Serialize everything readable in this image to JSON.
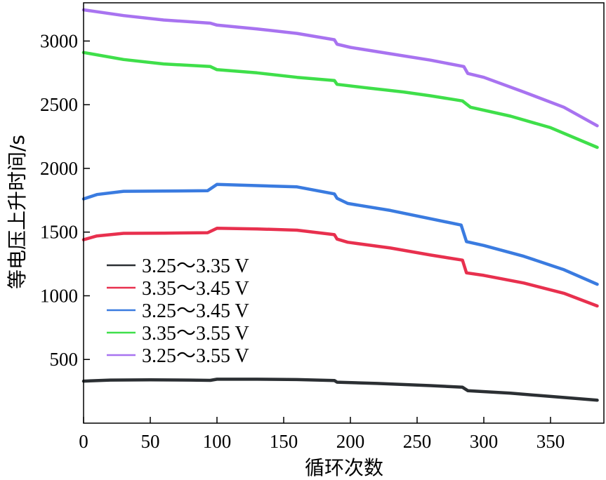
{
  "chart_data": {
    "type": "line",
    "xlabel": "循环次数",
    "ylabel": "等电压上升时间/s",
    "xlim": [
      0,
      390
    ],
    "ylim": [
      0,
      3300
    ],
    "xticks": [
      0,
      50,
      100,
      150,
      200,
      250,
      300,
      350
    ],
    "yticks": [
      500,
      1000,
      1500,
      2000,
      2500,
      3000
    ],
    "grid": false,
    "legend_position": "lower-left",
    "series": [
      {
        "name": "3.25～3.35 V",
        "color": "#2b2f33",
        "points": [
          [
            0,
            330
          ],
          [
            20,
            338
          ],
          [
            50,
            340
          ],
          [
            80,
            338
          ],
          [
            95,
            336
          ],
          [
            100,
            345
          ],
          [
            130,
            345
          ],
          [
            160,
            342
          ],
          [
            188,
            335
          ],
          [
            190,
            322
          ],
          [
            220,
            312
          ],
          [
            260,
            295
          ],
          [
            284,
            282
          ],
          [
            288,
            255
          ],
          [
            320,
            235
          ],
          [
            350,
            210
          ],
          [
            385,
            180
          ]
        ]
      },
      {
        "name": "3.35～3.45 V",
        "color": "#e8304e",
        "points": [
          [
            0,
            1440
          ],
          [
            10,
            1470
          ],
          [
            30,
            1490
          ],
          [
            60,
            1492
          ],
          [
            93,
            1495
          ],
          [
            100,
            1530
          ],
          [
            130,
            1525
          ],
          [
            160,
            1515
          ],
          [
            188,
            1480
          ],
          [
            190,
            1445
          ],
          [
            198,
            1420
          ],
          [
            230,
            1375
          ],
          [
            260,
            1320
          ],
          [
            284,
            1280
          ],
          [
            287,
            1180
          ],
          [
            300,
            1160
          ],
          [
            330,
            1100
          ],
          [
            360,
            1020
          ],
          [
            385,
            920
          ]
        ]
      },
      {
        "name": "3.25～3.45 V",
        "color": "#3a7be0",
        "points": [
          [
            0,
            1760
          ],
          [
            10,
            1795
          ],
          [
            30,
            1820
          ],
          [
            60,
            1822
          ],
          [
            93,
            1825
          ],
          [
            100,
            1875
          ],
          [
            130,
            1865
          ],
          [
            160,
            1855
          ],
          [
            188,
            1800
          ],
          [
            190,
            1765
          ],
          [
            198,
            1725
          ],
          [
            230,
            1670
          ],
          [
            260,
            1605
          ],
          [
            283,
            1555
          ],
          [
            287,
            1425
          ],
          [
            300,
            1395
          ],
          [
            330,
            1310
          ],
          [
            360,
            1205
          ],
          [
            385,
            1090
          ]
        ]
      },
      {
        "name": "3.35～3.55 V",
        "color": "#3fdf4a",
        "points": [
          [
            0,
            2910
          ],
          [
            30,
            2855
          ],
          [
            60,
            2820
          ],
          [
            95,
            2800
          ],
          [
            100,
            2775
          ],
          [
            130,
            2750
          ],
          [
            160,
            2715
          ],
          [
            188,
            2690
          ],
          [
            190,
            2660
          ],
          [
            210,
            2635
          ],
          [
            240,
            2600
          ],
          [
            260,
            2570
          ],
          [
            284,
            2530
          ],
          [
            290,
            2480
          ],
          [
            320,
            2410
          ],
          [
            350,
            2320
          ],
          [
            385,
            2165
          ]
        ]
      },
      {
        "name": "3.25～3.55 V",
        "color": "#a873f0",
        "points": [
          [
            0,
            3245
          ],
          [
            30,
            3200
          ],
          [
            60,
            3165
          ],
          [
            95,
            3140
          ],
          [
            100,
            3125
          ],
          [
            130,
            3095
          ],
          [
            160,
            3060
          ],
          [
            188,
            3010
          ],
          [
            190,
            2975
          ],
          [
            200,
            2950
          ],
          [
            230,
            2900
          ],
          [
            260,
            2850
          ],
          [
            285,
            2800
          ],
          [
            288,
            2745
          ],
          [
            300,
            2715
          ],
          [
            330,
            2600
          ],
          [
            360,
            2480
          ],
          [
            385,
            2335
          ]
        ]
      }
    ]
  }
}
